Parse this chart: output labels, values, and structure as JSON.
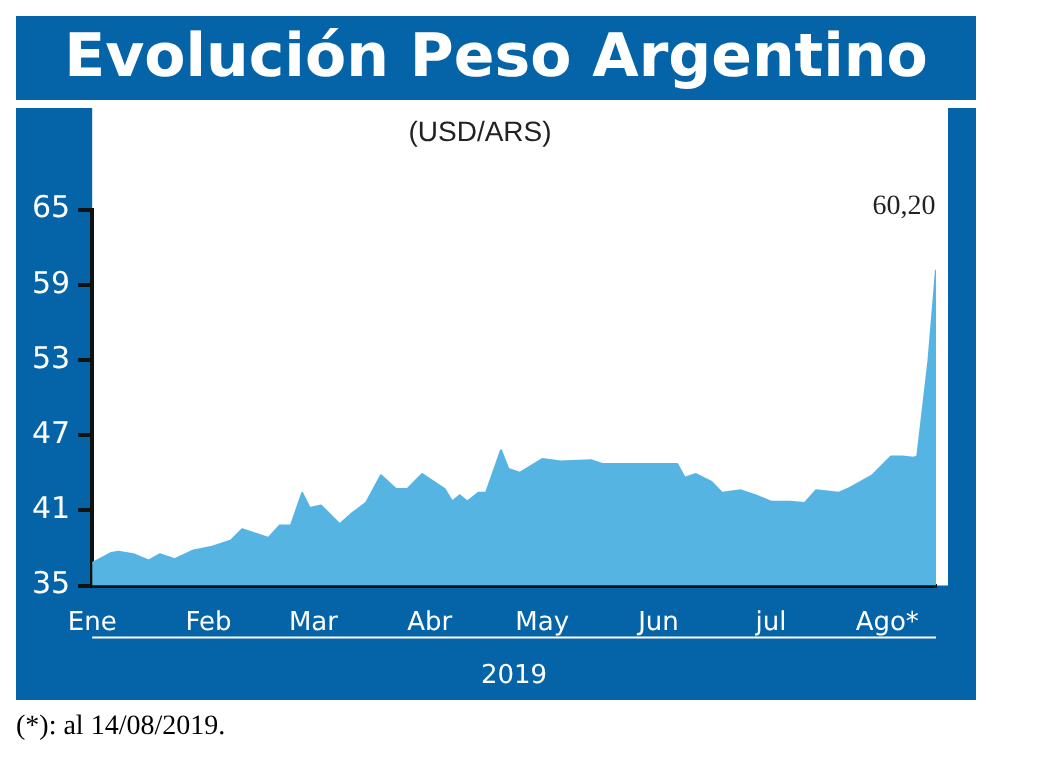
{
  "chart_data": {
    "type": "area",
    "title": "Evolución Peso Argentino",
    "subtitle": "(USD/ARS)",
    "xlabel": "2019",
    "x": [
      "2019-01-01",
      "2019-01-06",
      "2019-01-08",
      "2019-01-12",
      "2019-01-16",
      "2019-01-19",
      "2019-01-23",
      "2019-01-28",
      "2019-02-02",
      "2019-02-07",
      "2019-02-10",
      "2019-02-13",
      "2019-02-17",
      "2019-02-20",
      "2019-02-23",
      "2019-02-26",
      "2019-02-28",
      "2019-03-03",
      "2019-03-08",
      "2019-03-11",
      "2019-03-15",
      "2019-03-19",
      "2019-03-23",
      "2019-03-26",
      "2019-03-30",
      "2019-04-05",
      "2019-04-07",
      "2019-04-09",
      "2019-04-11",
      "2019-04-14",
      "2019-04-16",
      "2019-04-20",
      "2019-04-22",
      "2019-04-25",
      "2019-05-01",
      "2019-05-06",
      "2019-05-14",
      "2019-05-17",
      "2019-05-23",
      "2019-05-28",
      "2019-06-06",
      "2019-06-08",
      "2019-06-11",
      "2019-06-15",
      "2019-06-18",
      "2019-06-23",
      "2019-06-27",
      "2019-07-01",
      "2019-07-06",
      "2019-07-10",
      "2019-07-13",
      "2019-07-19",
      "2019-07-22",
      "2019-07-28",
      "2019-08-02",
      "2019-08-05",
      "2019-08-08",
      "2019-08-09",
      "2019-08-12",
      "2019-08-14"
    ],
    "series": [
      {
        "color": "#56b4e3",
        "values": [
          36.8,
          37.6,
          37.7,
          37.5,
          37.0,
          37.5,
          37.1,
          37.8,
          38.1,
          38.6,
          39.5,
          39.2,
          38.8,
          39.8,
          39.8,
          42.4,
          41.2,
          41.4,
          39.9,
          40.7,
          41.6,
          43.8,
          42.7,
          42.7,
          43.9,
          42.7,
          41.7,
          42.2,
          41.7,
          42.4,
          42.4,
          45.8,
          44.3,
          44.0,
          45.1,
          44.9,
          45.0,
          44.7,
          44.7,
          44.7,
          44.7,
          43.6,
          43.9,
          43.3,
          42.4,
          42.6,
          42.2,
          41.7,
          41.7,
          41.6,
          42.6,
          42.4,
          42.8,
          43.8,
          45.3,
          45.3,
          45.2,
          45.3,
          53.0,
          60.2
        ]
      }
    ],
    "xlim": [
      "2019-01-01",
      "2019-08-14"
    ],
    "xticks": [
      {
        "value": "2019-01-01",
        "label": "Ene"
      },
      {
        "value": "2019-02-01",
        "label": "Feb"
      },
      {
        "value": "2019-03-01",
        "label": "Mar"
      },
      {
        "value": "2019-04-01",
        "label": "Abr"
      },
      {
        "value": "2019-05-01",
        "label": "May"
      },
      {
        "value": "2019-06-01",
        "label": "Jun"
      },
      {
        "value": "2019-07-01",
        "label": "jul"
      },
      {
        "value": "2019-08-01",
        "label": "Ago*"
      }
    ],
    "ylim": [
      35,
      65
    ],
    "yticks": [
      35,
      41,
      47,
      53,
      59,
      65
    ],
    "grid": false,
    "legend": false,
    "annotations": [
      {
        "text": "60,20",
        "x": "2019-08-14",
        "y": 60.2
      },
      "(*): al 14/08/2019."
    ]
  }
}
